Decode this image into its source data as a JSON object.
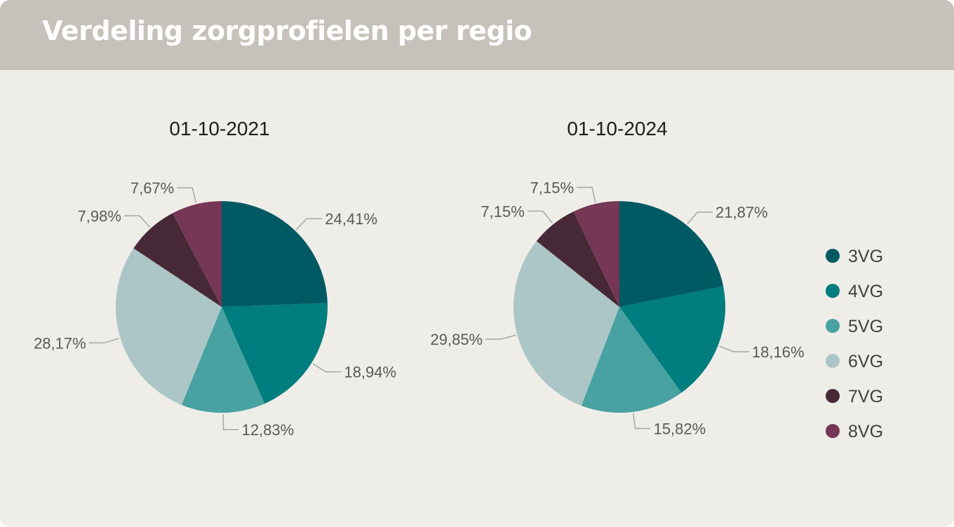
{
  "header": {
    "title": "Verdeling zorgprofielen per regio"
  },
  "colors": {
    "3VG": "#005a63",
    "4VG": "#007d7e",
    "5VG": "#48a2a2",
    "6VG": "#acc6c7",
    "7VG": "#472836",
    "8VG": "#763655"
  },
  "chart_data": [
    {
      "type": "pie",
      "title": "01-10-2021",
      "categories": [
        "3VG",
        "4VG",
        "5VG",
        "6VG",
        "7VG",
        "8VG"
      ],
      "values": [
        24.41,
        18.94,
        12.83,
        28.17,
        7.98,
        7.67
      ],
      "labels": [
        "24,41%",
        "18,94%",
        "12,83%",
        "28,17%",
        "7,98%",
        "7,67%"
      ]
    },
    {
      "type": "pie",
      "title": "01-10-2024",
      "categories": [
        "3VG",
        "4VG",
        "5VG",
        "6VG",
        "7VG",
        "8VG"
      ],
      "values": [
        21.87,
        18.16,
        15.82,
        29.85,
        7.15,
        7.15
      ],
      "labels": [
        "21,87%",
        "18,16%",
        "15,82%",
        "29,85%",
        "7,15%",
        "7,15%"
      ]
    }
  ],
  "legend": {
    "position": "right",
    "items": [
      "3VG",
      "4VG",
      "5VG",
      "6VG",
      "7VG",
      "8VG"
    ]
  }
}
